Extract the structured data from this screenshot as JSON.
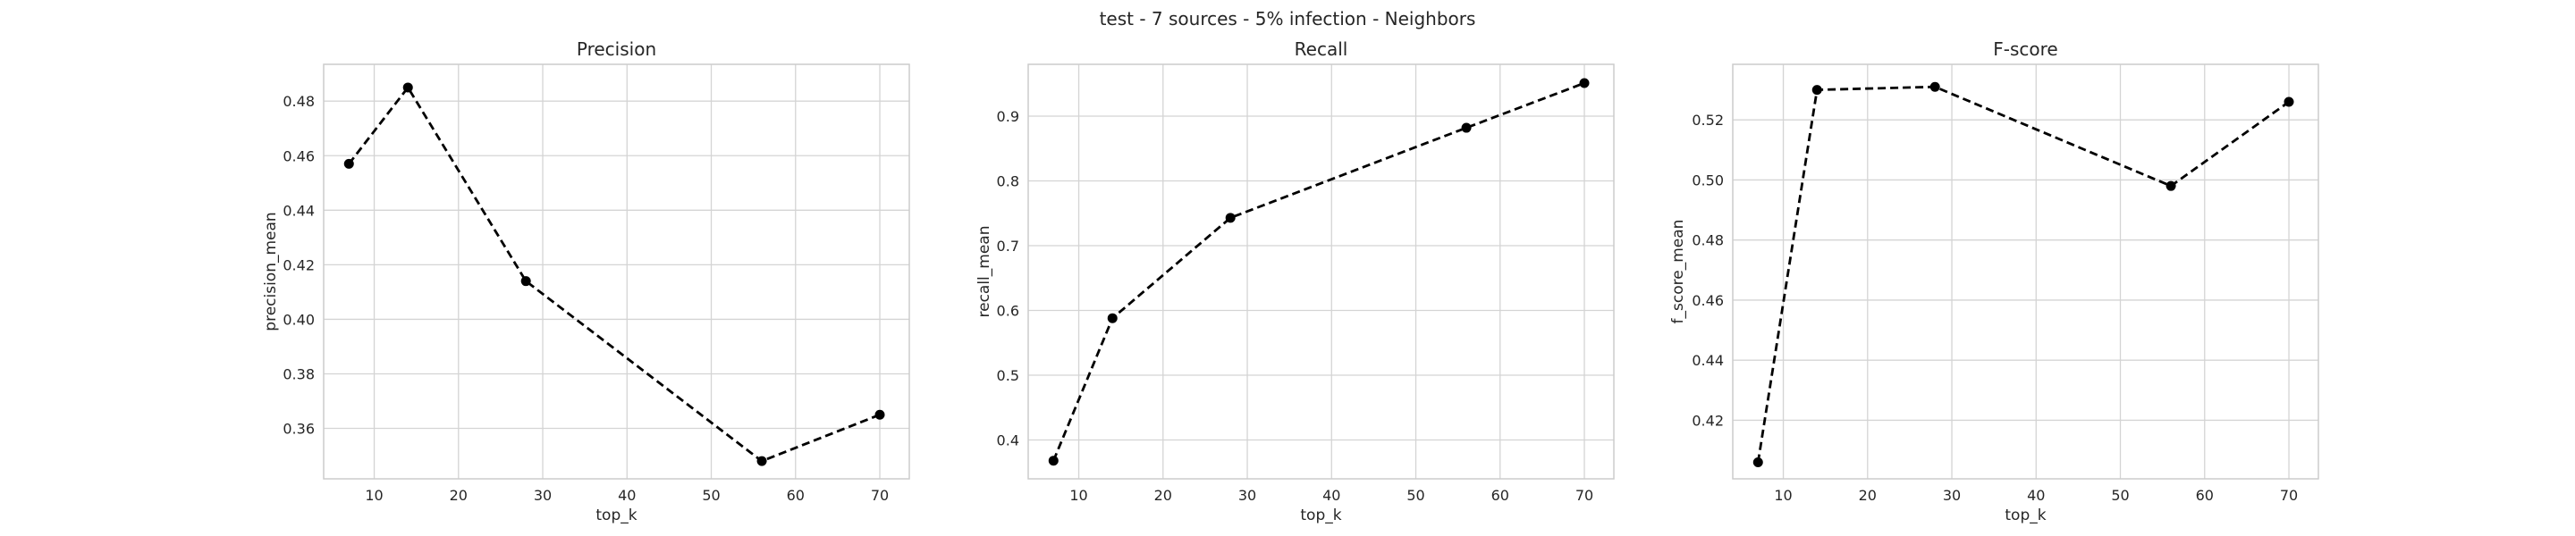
{
  "figure": {
    "suptitle": "test - 7 sources - 5% infection - Neighbors"
  },
  "chart_data": [
    {
      "type": "line",
      "title": "Precision",
      "xlabel": "top_k",
      "ylabel": "precision_mean",
      "x": [
        7,
        14,
        28,
        56,
        70
      ],
      "series": [
        {
          "values": [
            0.457,
            0.485,
            0.414,
            0.348,
            0.365
          ]
        }
      ],
      "xlim": [
        4,
        73.5
      ],
      "ylim": [
        0.3415,
        0.4935
      ],
      "xticks": [
        10,
        20,
        30,
        40,
        50,
        60,
        70
      ],
      "yticks": [
        0.36,
        0.38,
        0.4,
        0.42,
        0.44,
        0.46,
        0.48
      ],
      "ytick_labels": [
        "0.36",
        "0.38",
        "0.40",
        "0.42",
        "0.44",
        "0.46",
        "0.48"
      ],
      "line_color": "#000000",
      "line_style": "dashed",
      "marker": "circle",
      "grid": true
    },
    {
      "type": "line",
      "title": "Recall",
      "xlabel": "top_k",
      "ylabel": "recall_mean",
      "x": [
        7,
        14,
        28,
        56,
        70
      ],
      "series": [
        {
          "values": [
            0.368,
            0.588,
            0.743,
            0.882,
            0.951
          ]
        }
      ],
      "xlim": [
        4,
        73.5
      ],
      "ylim": [
        0.34,
        0.98
      ],
      "xticks": [
        10,
        20,
        30,
        40,
        50,
        60,
        70
      ],
      "yticks": [
        0.4,
        0.5,
        0.6,
        0.7,
        0.8,
        0.9
      ],
      "ytick_labels": [
        "0.4",
        "0.5",
        "0.6",
        "0.7",
        "0.8",
        "0.9"
      ],
      "line_color": "#000000",
      "line_style": "dashed",
      "marker": "circle",
      "grid": true
    },
    {
      "type": "line",
      "title": "F-score",
      "xlabel": "top_k",
      "ylabel": "f_score_mean",
      "x": [
        7,
        14,
        28,
        56,
        70
      ],
      "series": [
        {
          "values": [
            0.406,
            0.53,
            0.531,
            0.498,
            0.526
          ]
        }
      ],
      "xlim": [
        4,
        73.5
      ],
      "ylim": [
        0.4005,
        0.5385
      ],
      "xticks": [
        10,
        20,
        30,
        40,
        50,
        60,
        70
      ],
      "yticks": [
        0.42,
        0.44,
        0.46,
        0.48,
        0.5,
        0.52
      ],
      "ytick_labels": [
        "0.42",
        "0.44",
        "0.46",
        "0.48",
        "0.50",
        "0.52"
      ],
      "line_color": "#000000",
      "line_style": "dashed",
      "marker": "circle",
      "grid": true
    }
  ]
}
